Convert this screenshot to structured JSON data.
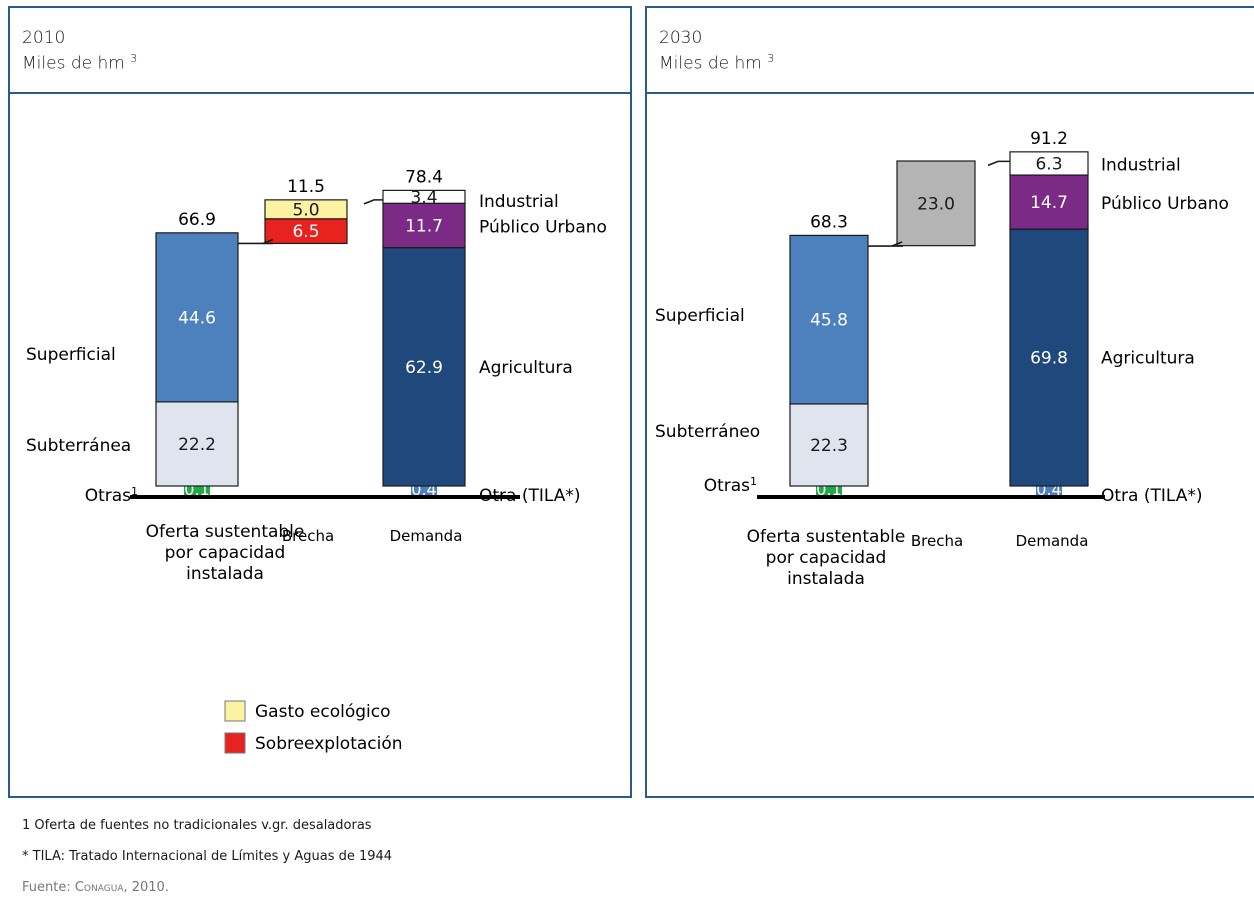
{
  "panels": [
    {
      "year": "2010",
      "unit": "Miles de hm",
      "unit_sup": "3"
    },
    {
      "year": "2030",
      "unit": "Miles de hm",
      "unit_sup": "3"
    }
  ],
  "chart_data": [
    {
      "type": "bar",
      "title": "2010",
      "ylabel": "Miles de hm3",
      "categories": [
        "Oferta sustentable por capacidad instalada",
        "Brecha",
        "Demanda"
      ],
      "category_lines": [
        [
          "Oferta sustentable",
          "por capacidad",
          "instalada"
        ],
        [
          "Brecha"
        ],
        [
          "Demanda"
        ]
      ],
      "bars": [
        {
          "total": "66.9",
          "segments": [
            {
              "name": "Otras",
              "sup": "1",
              "value": 0.1,
              "label": "0.1",
              "color": "#22a846"
            },
            {
              "name": "Subterránea",
              "value": 22.2,
              "label": "22.2",
              "color": "#dfe4ef"
            },
            {
              "name": "Superficial",
              "value": 44.6,
              "label": "44.6",
              "color": "#4d81be"
            }
          ]
        },
        {
          "total": "11.5",
          "base": 66.9,
          "segments": [
            {
              "name": "Sobreexplotación",
              "value": 6.5,
              "label": "6.5",
              "color": "#e8231f"
            },
            {
              "name": "Gasto ecológico",
              "value": 5.0,
              "label": "5.0",
              "color": "#fbf2a2"
            }
          ]
        },
        {
          "total": "78.4",
          "segments": [
            {
              "name": "Otra (TILA*)",
              "value": 0.4,
              "label": "0.4",
              "color": "#4d81be"
            },
            {
              "name": "Agricultura",
              "value": 62.9,
              "label": "62.9",
              "color": "#1f487c"
            },
            {
              "name": "Público Urbano",
              "value": 11.7,
              "label": "11.7",
              "color": "#7b2a86"
            },
            {
              "name": "Industrial",
              "value": 3.4,
              "label": "3.4",
              "color": "#ffffff"
            }
          ]
        }
      ],
      "legend": [
        {
          "label": "Gasto ecológico",
          "color": "#fbf2a2"
        },
        {
          "label": "Sobreexplotación",
          "color": "#e8231f"
        }
      ]
    },
    {
      "type": "bar",
      "title": "2030",
      "ylabel": "Miles de hm3",
      "categories": [
        "Oferta sustentable por capacidad instalada",
        "Brecha",
        "Demanda"
      ],
      "category_lines": [
        [
          "Oferta sustentable",
          "por capacidad",
          "instalada"
        ],
        [
          "Brecha"
        ],
        [
          "Demanda"
        ]
      ],
      "bars": [
        {
          "total": "68.3",
          "segments": [
            {
              "name": "Otras",
              "sup": "1",
              "value": 0.1,
              "label": "0.1",
              "color": "#22a846"
            },
            {
              "name": "Subterráneo",
              "value": 22.3,
              "label": "22.3",
              "color": "#dfe4ef"
            },
            {
              "name": "Superficial",
              "value": 45.8,
              "label": "45.8",
              "color": "#4d81be"
            }
          ]
        },
        {
          "total": "",
          "base": 68.3,
          "segments": [
            {
              "name": "",
              "value": 23.0,
              "label": "23.0",
              "color": "#b4b4b4"
            }
          ]
        },
        {
          "total": "91.2",
          "segments": [
            {
              "name": "Otra (TILA*)",
              "value": 0.4,
              "label": "0.4",
              "color": "#4d81be"
            },
            {
              "name": "Agricultura",
              "value": 69.8,
              "label": "69.8",
              "color": "#1f487c"
            },
            {
              "name": "Público Urbano",
              "value": 14.7,
              "label": "14.7",
              "color": "#7b2a86"
            },
            {
              "name": "Industrial",
              "value": 6.3,
              "label": "6.3",
              "color": "#ffffff"
            }
          ]
        }
      ],
      "legend": []
    }
  ],
  "footnotes": {
    "note1": "1 Oferta de fuentes no tradicionales v.gr. desaladoras",
    "note2": "* TILA: Tratado Internacional de Límites y Aguas de 1944",
    "source_prefix": "Fuente: ",
    "source_org": "Conagua",
    "source_suffix": ", 2010."
  }
}
